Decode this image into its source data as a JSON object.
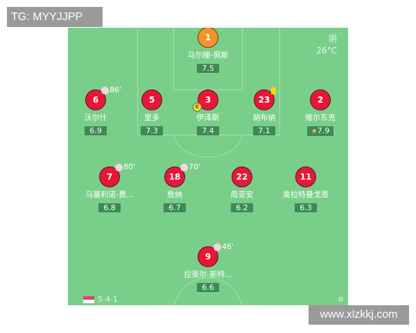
{
  "watermarks": {
    "top": "TG: MYYJJPP",
    "bottom": "www.xlzkkj.com"
  },
  "weather": {
    "condition": "阴",
    "temperature": "26°C"
  },
  "formation": "5-4-1",
  "colors": {
    "pitch": "#79cf89",
    "player": "#e8163a",
    "goalkeeper": "#f5922a",
    "rating_bg": "#3d8a55"
  },
  "players": [
    {
      "number": "1",
      "name": "马尔滕-佩斯",
      "rating": "7.5",
      "gk": true
    },
    {
      "number": "6",
      "name": "沃尔什",
      "rating": "6.9",
      "sub": "86'"
    },
    {
      "number": "5",
      "name": "里多",
      "rating": "7.3"
    },
    {
      "number": "3",
      "name": "伊泽斯",
      "rating": "7.4",
      "captain": "C"
    },
    {
      "number": "23",
      "name": "胡布纳",
      "rating": "7.1",
      "yellow_card": true
    },
    {
      "number": "2",
      "name": "维尔东克",
      "rating": "7.9",
      "star": true
    },
    {
      "number": "7",
      "name": "马塞利诺-费...",
      "rating": "6.8",
      "sub": "80'"
    },
    {
      "number": "18",
      "name": "詹纳",
      "rating": "6.7",
      "sub": "70'"
    },
    {
      "number": "22",
      "name": "周亚安",
      "rating": "6.2"
    },
    {
      "number": "11",
      "name": "奥拉特曼戈恩",
      "rating": "6.3"
    },
    {
      "number": "9",
      "name": "拉斐尔-斯特...",
      "rating": "6.6",
      "sub": "46'"
    }
  ]
}
